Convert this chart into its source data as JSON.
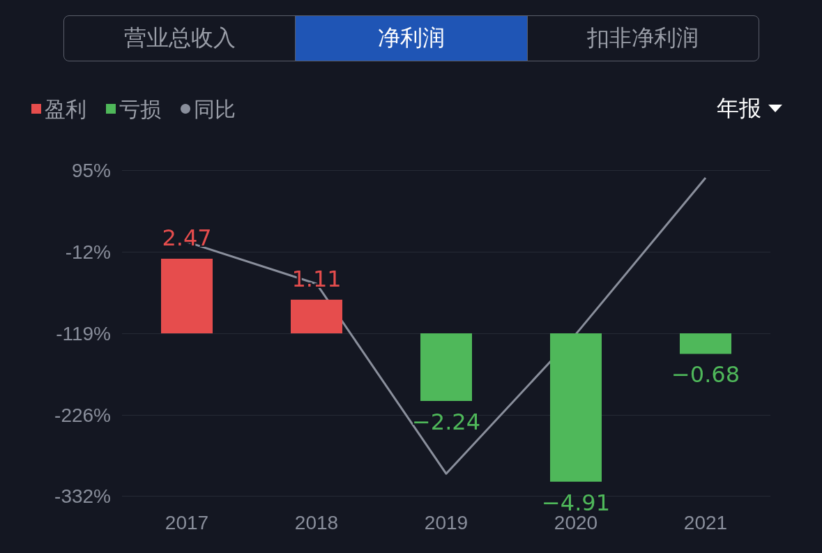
{
  "chart_data": {
    "type": "bar",
    "categories": [
      "2017",
      "2018",
      "2019",
      "2020",
      "2021"
    ],
    "series": [
      {
        "name": "盈利",
        "axis": "y2",
        "color": "#e64d4d",
        "values": [
          2.47,
          1.11,
          null,
          null,
          null
        ],
        "data_labels": true
      },
      {
        "name": "亏损",
        "axis": "y2",
        "color": "#4fb85a",
        "values": [
          null,
          null,
          -2.24,
          -4.91,
          -0.68
        ],
        "data_labels": true
      },
      {
        "name": "同比",
        "type": "line",
        "color": "#8a8f9c",
        "values": [
          1,
          -54,
          -303,
          -120,
          85
        ],
        "marker": "none",
        "line_style": "solid"
      }
    ],
    "ylim": [
      -332,
      95
    ],
    "yticks": [
      {
        "value": 95,
        "label": "95%"
      },
      {
        "value": -12,
        "label": "-12%"
      },
      {
        "value": -119,
        "label": "-119%"
      },
      {
        "value": -226,
        "label": "-226%"
      },
      {
        "value": -332,
        "label": "-332%"
      }
    ],
    "y2lim": [
      -5.38,
      5.4
    ],
    "grid": "y",
    "legend": "top left",
    "annotations": [
      "营业总收入",
      "净利润",
      "扣非净利润",
      "年报"
    ]
  }
}
